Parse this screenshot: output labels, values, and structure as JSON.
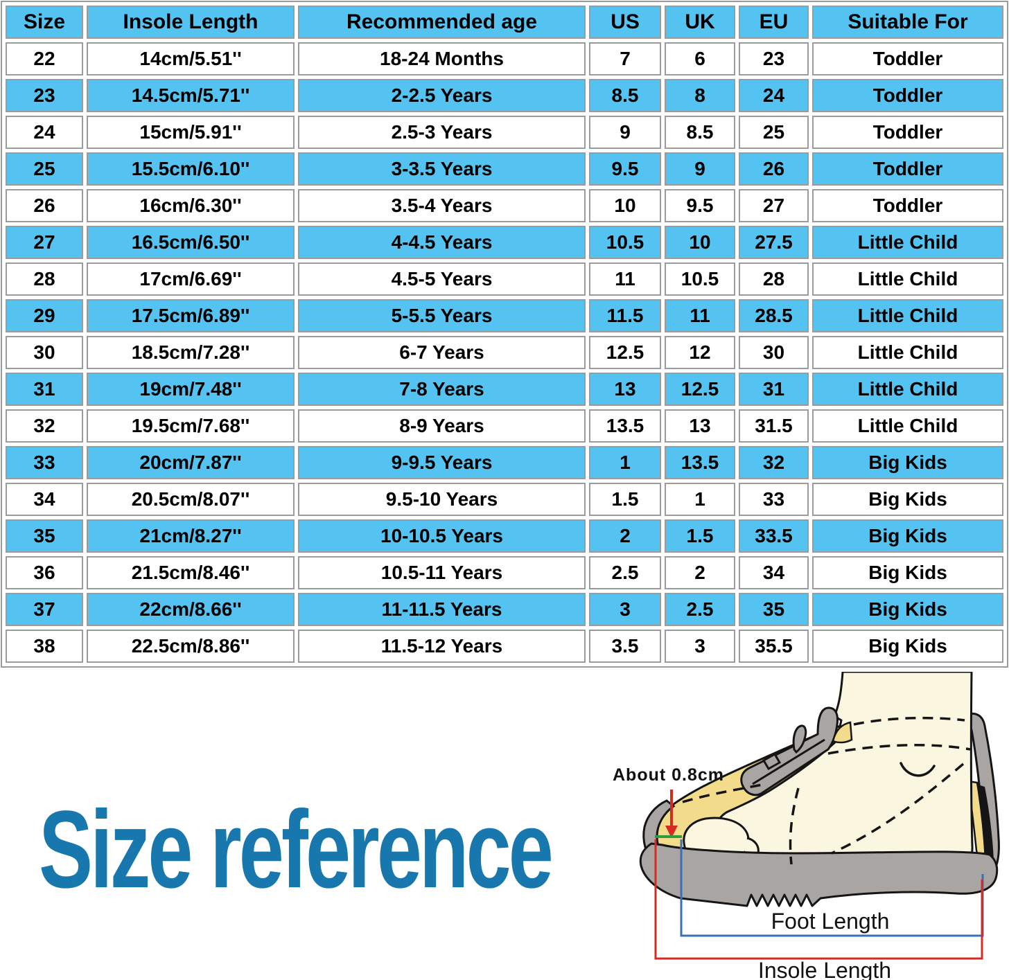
{
  "table": {
    "headers": [
      "Size",
      "Insole Length",
      "Recommended age",
      "US",
      "UK",
      "EU",
      "Suitable For"
    ],
    "rows": [
      [
        "22",
        "14cm/5.51''",
        "18-24 Months",
        "7",
        "6",
        "23",
        "Toddler"
      ],
      [
        "23",
        "14.5cm/5.71''",
        "2-2.5 Years",
        "8.5",
        "8",
        "24",
        "Toddler"
      ],
      [
        "24",
        "15cm/5.91''",
        "2.5-3 Years",
        "9",
        "8.5",
        "25",
        "Toddler"
      ],
      [
        "25",
        "15.5cm/6.10''",
        "3-3.5 Years",
        "9.5",
        "9",
        "26",
        "Toddler"
      ],
      [
        "26",
        "16cm/6.30''",
        "3.5-4 Years",
        "10",
        "9.5",
        "27",
        "Toddler"
      ],
      [
        "27",
        "16.5cm/6.50''",
        "4-4.5 Years",
        "10.5",
        "10",
        "27.5",
        "Little Child"
      ],
      [
        "28",
        "17cm/6.69''",
        "4.5-5 Years",
        "11",
        "10.5",
        "28",
        "Little Child"
      ],
      [
        "29",
        "17.5cm/6.89''",
        "5-5.5 Years",
        "11.5",
        "11",
        "28.5",
        "Little Child"
      ],
      [
        "30",
        "18.5cm/7.28''",
        "6-7 Years",
        "12.5",
        "12",
        "30",
        "Little Child"
      ],
      [
        "31",
        "19cm/7.48''",
        "7-8 Years",
        "13",
        "12.5",
        "31",
        "Little Child"
      ],
      [
        "32",
        "19.5cm/7.68''",
        "8-9 Years",
        "13.5",
        "13",
        "31.5",
        "Little Child"
      ],
      [
        "33",
        "20cm/7.87''",
        "9-9.5 Years",
        "1",
        "13.5",
        "32",
        "Big Kids"
      ],
      [
        "34",
        "20.5cm/8.07''",
        "9.5-10 Years",
        "1.5",
        "1",
        "33",
        "Big Kids"
      ],
      [
        "35",
        "21cm/8.27''",
        "10-10.5 Years",
        "2",
        "1.5",
        "33.5",
        "Big Kids"
      ],
      [
        "36",
        "21.5cm/8.46''",
        "10.5-11 Years",
        "2.5",
        "2",
        "34",
        "Big Kids"
      ],
      [
        "37",
        "22cm/8.66''",
        "11-11.5 Years",
        "3",
        "2.5",
        "35",
        "Big Kids"
      ],
      [
        "38",
        "22.5cm/8.86''",
        "11.5-12 Years",
        "3.5",
        "3",
        "35.5",
        "Big Kids"
      ]
    ]
  },
  "reference": {
    "title": "Size reference",
    "gap_label": "About 0.8cm",
    "foot_length_label": "Foot Length",
    "insole_length_label": "Insole Length"
  },
  "colors": {
    "cyan": "#55c3f1",
    "border_gray": "#9b9b9b",
    "title_blue": "#1878ae",
    "arrow_red": "#d52b20",
    "line_green": "#2e9b3d",
    "bracket_blue": "#3a6fb7",
    "sole_gray": "#a9a5a2",
    "insole_yellow": "#f2dc8b",
    "foot_cream": "#faf6e0",
    "outline_black": "#151515"
  }
}
